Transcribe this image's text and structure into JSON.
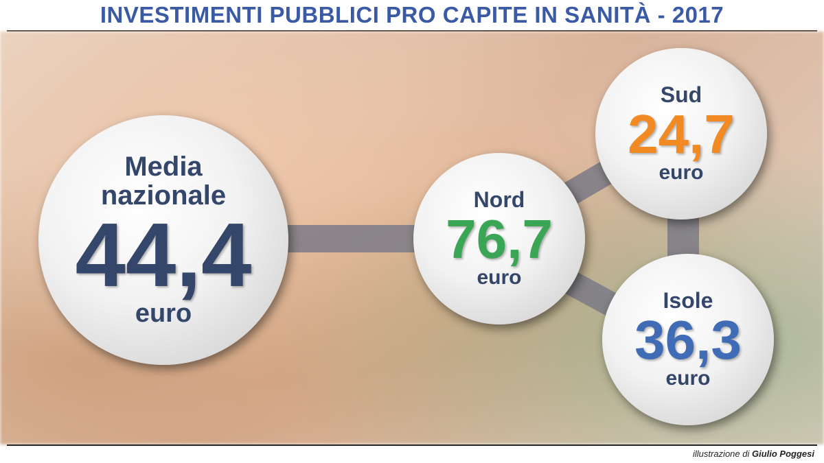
{
  "title": "INVESTIMENTI PUBBLICI PRO CAPITE IN SANITÀ - 2017",
  "nodes": [
    {
      "label": "Media nazionale",
      "value": "44,4",
      "unit": "euro",
      "color": "#34466a"
    },
    {
      "label": "Nord",
      "value": "76,7",
      "unit": "euro",
      "color": "#3aa655"
    },
    {
      "label": "Sud",
      "value": "24,7",
      "unit": "euro",
      "color": "#f28a24"
    },
    {
      "label": "Isole",
      "value": "36,3",
      "unit": "euro",
      "color": "#3f6cb5"
    }
  ],
  "credit": {
    "prefix": "illustrazione di",
    "author": "Giulio Poggesi"
  }
}
